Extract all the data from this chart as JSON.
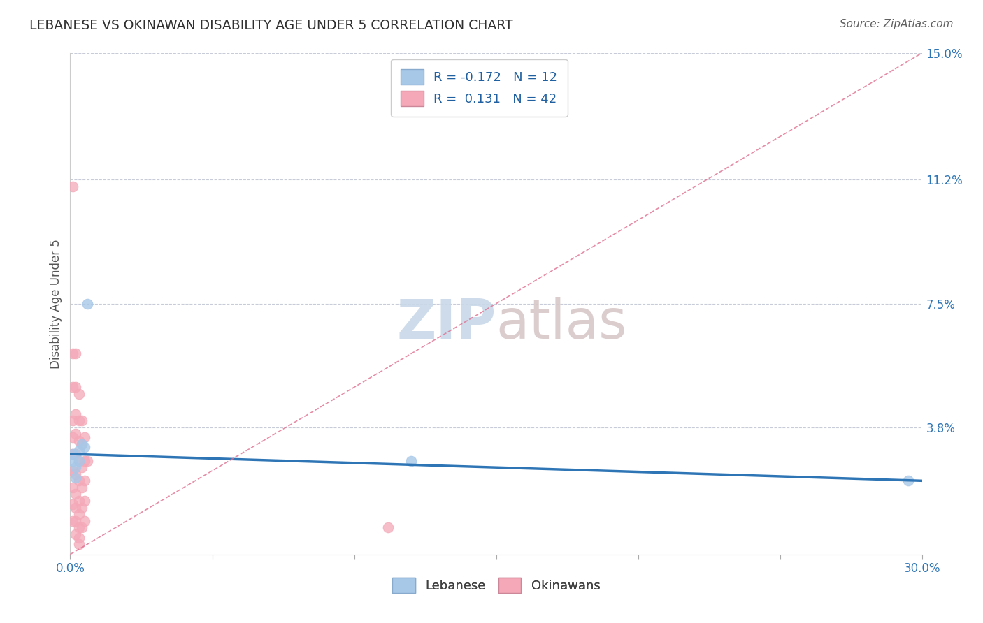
{
  "title": "LEBANESE VS OKINAWAN DISABILITY AGE UNDER 5 CORRELATION CHART",
  "source": "Source: ZipAtlas.com",
  "ylabel": "Disability Age Under 5",
  "xlim": [
    0.0,
    0.3
  ],
  "ylim": [
    0.0,
    0.15
  ],
  "xticks": [
    0.0,
    0.05,
    0.1,
    0.15,
    0.2,
    0.25,
    0.3
  ],
  "xtick_labels": [
    "0.0%",
    "",
    "",
    "",
    "",
    "",
    "30.0%"
  ],
  "ytick_positions": [
    0.038,
    0.075,
    0.112,
    0.15
  ],
  "ytick_labels": [
    "3.8%",
    "7.5%",
    "11.2%",
    "15.0%"
  ],
  "lebanese_x": [
    0.001,
    0.001,
    0.002,
    0.002,
    0.003,
    0.003,
    0.004,
    0.005,
    0.006,
    0.12,
    0.295
  ],
  "lebanese_y": [
    0.028,
    0.03,
    0.026,
    0.023,
    0.031,
    0.028,
    0.033,
    0.032,
    0.075,
    0.028,
    0.022
  ],
  "okinawan_x": [
    0.001,
    0.001,
    0.001,
    0.001,
    0.001,
    0.001,
    0.001,
    0.001,
    0.001,
    0.001,
    0.002,
    0.002,
    0.002,
    0.002,
    0.002,
    0.002,
    0.002,
    0.002,
    0.002,
    0.002,
    0.003,
    0.003,
    0.003,
    0.003,
    0.003,
    0.003,
    0.003,
    0.003,
    0.003,
    0.003,
    0.004,
    0.004,
    0.004,
    0.004,
    0.004,
    0.004,
    0.005,
    0.005,
    0.005,
    0.005,
    0.005,
    0.006,
    0.112
  ],
  "okinawan_y": [
    0.11,
    0.06,
    0.05,
    0.04,
    0.035,
    0.03,
    0.025,
    0.02,
    0.015,
    0.01,
    0.06,
    0.05,
    0.042,
    0.036,
    0.03,
    0.024,
    0.018,
    0.014,
    0.01,
    0.006,
    0.048,
    0.04,
    0.034,
    0.028,
    0.022,
    0.016,
    0.012,
    0.008,
    0.005,
    0.003,
    0.04,
    0.033,
    0.026,
    0.02,
    0.014,
    0.008,
    0.035,
    0.028,
    0.022,
    0.016,
    0.01,
    0.028,
    0.008
  ],
  "leb_color": "#a8c8e8",
  "oki_color": "#f4a8b8",
  "leb_line_color": "#2e75b6",
  "oki_line_color": "#e07090",
  "leb_line_start_x": 0.0,
  "leb_line_start_y": 0.03,
  "leb_line_end_x": 0.3,
  "leb_line_end_y": 0.022,
  "oki_line_start_x": 0.0,
  "oki_line_start_y": 0.0,
  "oki_line_end_x": 0.3,
  "oki_line_end_y": 0.15,
  "background_color": "#ffffff"
}
